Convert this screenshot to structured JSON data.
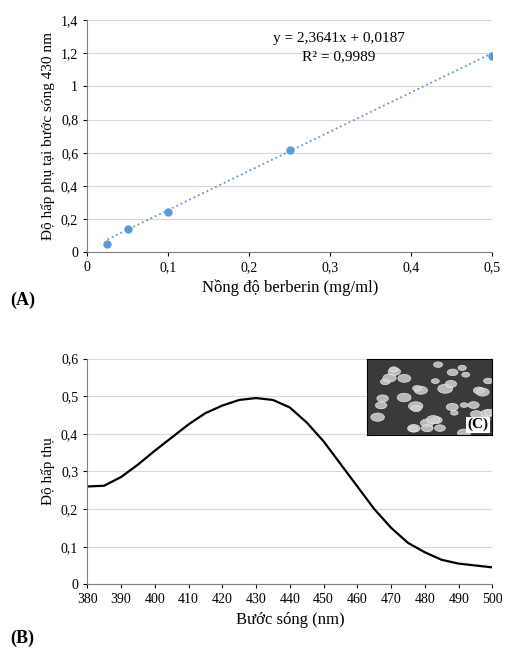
{
  "chart_data": [
    {
      "type": "scatter",
      "label": "(A)",
      "x_label": "Nồng độ berberin (mg/ml)",
      "y_label": "Độ hấp phụ tại bước sóng 430 nm",
      "x": [
        0.025,
        0.05,
        0.1,
        0.25,
        0.5
      ],
      "values": [
        0.05,
        0.14,
        0.24,
        0.615,
        1.18
      ],
      "color": "#5b9bd5",
      "marker": "o",
      "trendline": {
        "slope": 2.3641,
        "intercept": 0.0187,
        "color": "#5b9bd5",
        "line_style": "dotted"
      },
      "annotations": [
        "y = 2,3641x + 0,0187",
        "R² = 0,9989"
      ],
      "xlim": [
        0,
        0.5
      ],
      "xticks": [
        0,
        {
          "value": 0.1,
          "label": "0,1"
        },
        {
          "value": 0.2,
          "label": "0,2"
        },
        {
          "value": 0.3,
          "label": "0,3"
        },
        {
          "value": 0.4,
          "label": "0,4"
        },
        {
          "value": 0.5,
          "label": "0,5"
        }
      ],
      "ylim": [
        0,
        1.4
      ],
      "yticks": [
        0,
        {
          "value": 0.2,
          "label": "0,2"
        },
        {
          "value": 0.4,
          "label": "0,4"
        },
        {
          "value": 0.6,
          "label": "0,6"
        },
        {
          "value": 0.8,
          "label": "0,8"
        },
        {
          "value": 1,
          "label": "1"
        },
        {
          "value": 1.2,
          "label": "1,2"
        },
        {
          "value": 1.4,
          "label": "1,4"
        }
      ],
      "grid": true
    },
    {
      "type": "line",
      "label": "(B)",
      "x_label": "Bước sóng (nm)",
      "y_label": "Độ hấp thụ",
      "x": [
        380,
        385,
        390,
        395,
        400,
        405,
        410,
        415,
        420,
        425,
        430,
        435,
        440,
        445,
        450,
        455,
        460,
        465,
        470,
        475,
        480,
        485,
        490,
        495,
        500
      ],
      "values": [
        0.26,
        0.262,
        0.285,
        0.318,
        0.355,
        0.39,
        0.425,
        0.455,
        0.475,
        0.49,
        0.495,
        0.49,
        0.47,
        0.43,
        0.38,
        0.32,
        0.26,
        0.2,
        0.15,
        0.11,
        0.085,
        0.065,
        0.055,
        0.05,
        0.045
      ],
      "color": "#000000",
      "annotations": [
        "(C)"
      ],
      "xlim": [
        380,
        500
      ],
      "xticks": [
        380,
        390,
        400,
        410,
        420,
        430,
        440,
        450,
        460,
        470,
        480,
        490,
        500
      ],
      "ylim": [
        0,
        0.6
      ],
      "yticks": [
        0,
        {
          "value": 0.1,
          "label": "0,1"
        },
        {
          "value": 0.2,
          "label": "0,2"
        },
        {
          "value": 0.3,
          "label": "0,3"
        },
        {
          "value": 0.4,
          "label": "0,4"
        },
        {
          "value": 0.5,
          "label": "0,5"
        },
        {
          "value": 0.6,
          "label": "0,6"
        }
      ],
      "grid": true
    }
  ]
}
